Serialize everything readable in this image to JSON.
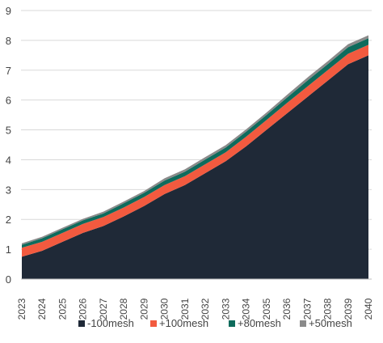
{
  "chart_data": {
    "type": "area",
    "stacked": true,
    "title": "",
    "xlabel": "",
    "ylabel": "",
    "ylim": [
      0,
      9
    ],
    "yticks": [
      0,
      1,
      2,
      3,
      4,
      5,
      6,
      7,
      8,
      9
    ],
    "grid": "horizontal",
    "legend_position": "bottom",
    "x": [
      "2023",
      "2024",
      "2025",
      "2026",
      "2027",
      "2028",
      "2029",
      "2030",
      "2031",
      "2032",
      "2033",
      "2034",
      "2035",
      "2036",
      "2037",
      "2038",
      "2039",
      "2040"
    ],
    "series": [
      {
        "name": "-100mesh",
        "color": "#1f2937",
        "values": [
          0.75,
          0.95,
          1.25,
          1.55,
          1.78,
          2.1,
          2.45,
          2.85,
          3.15,
          3.55,
          3.95,
          4.45,
          5.0,
          5.55,
          6.1,
          6.65,
          7.2,
          7.5
        ]
      },
      {
        "name": "+100mesh",
        "color": "#f25a3f",
        "values": [
          0.3,
          0.3,
          0.3,
          0.3,
          0.3,
          0.3,
          0.3,
          0.3,
          0.3,
          0.3,
          0.3,
          0.32,
          0.33,
          0.35,
          0.35,
          0.35,
          0.35,
          0.35
        ]
      },
      {
        "name": "+80mesh",
        "color": "#0e6b5c",
        "values": [
          0.1,
          0.12,
          0.12,
          0.12,
          0.12,
          0.14,
          0.14,
          0.15,
          0.15,
          0.16,
          0.16,
          0.17,
          0.17,
          0.18,
          0.2,
          0.2,
          0.22,
          0.22
        ]
      },
      {
        "name": "+50mesh",
        "color": "#8a8a8a",
        "values": [
          0.05,
          0.05,
          0.05,
          0.05,
          0.06,
          0.06,
          0.06,
          0.08,
          0.08,
          0.08,
          0.08,
          0.08,
          0.08,
          0.09,
          0.1,
          0.1,
          0.1,
          0.1
        ]
      }
    ]
  }
}
